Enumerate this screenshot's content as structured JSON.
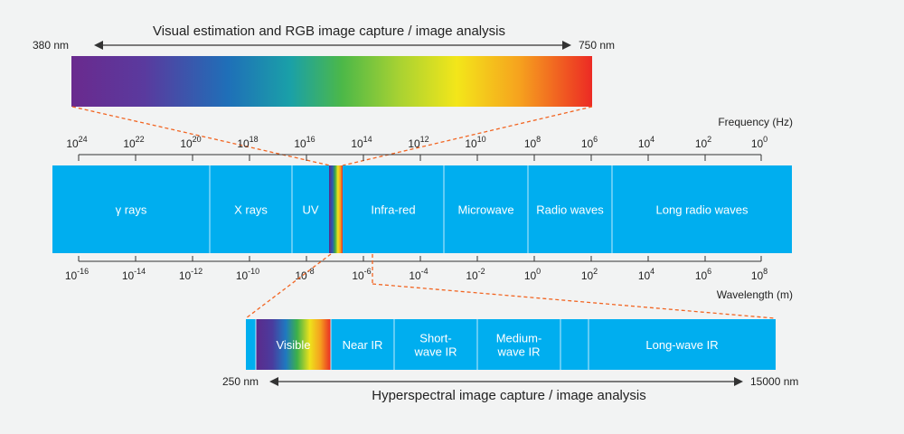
{
  "visible_strip": {
    "title": "Visual estimation and RGB image capture / image analysis",
    "start_label": "380 nm",
    "end_label": "750 nm"
  },
  "frequency_axis": {
    "label": "Frequency (Hz)",
    "ticks": [
      {
        "base": "10",
        "exp": "24"
      },
      {
        "base": "10",
        "exp": "22"
      },
      {
        "base": "10",
        "exp": "20"
      },
      {
        "base": "10",
        "exp": "18"
      },
      {
        "base": "10",
        "exp": "16"
      },
      {
        "base": "10",
        "exp": "14"
      },
      {
        "base": "10",
        "exp": "12"
      },
      {
        "base": "10",
        "exp": "10"
      },
      {
        "base": "10",
        "exp": "8"
      },
      {
        "base": "10",
        "exp": "6"
      },
      {
        "base": "10",
        "exp": "4"
      },
      {
        "base": "10",
        "exp": "2"
      },
      {
        "base": "10",
        "exp": "0"
      }
    ]
  },
  "spectrum_bands": [
    {
      "id": "gamma",
      "label": "γ rays"
    },
    {
      "id": "xray",
      "label": "X rays"
    },
    {
      "id": "uv",
      "label": "UV"
    },
    {
      "id": "visible-slice",
      "label": ""
    },
    {
      "id": "infrared",
      "label": "Infra-red"
    },
    {
      "id": "microwave",
      "label": "Microwave"
    },
    {
      "id": "radio",
      "label": "Radio waves"
    },
    {
      "id": "long-radio",
      "label": "Long radio waves"
    }
  ],
  "wavelength_axis": {
    "label": "Wavelength (m)",
    "ticks": [
      {
        "base": "10",
        "exp": "-16"
      },
      {
        "base": "10",
        "exp": "-14"
      },
      {
        "base": "10",
        "exp": "-12"
      },
      {
        "base": "10",
        "exp": "-10"
      },
      {
        "base": "10",
        "exp": "-8"
      },
      {
        "base": "10",
        "exp": "-6"
      },
      {
        "base": "10",
        "exp": "-4"
      },
      {
        "base": "10",
        "exp": "-2"
      },
      {
        "base": "10",
        "exp": "0"
      },
      {
        "base": "10",
        "exp": "2"
      },
      {
        "base": "10",
        "exp": "4"
      },
      {
        "base": "10",
        "exp": "6"
      },
      {
        "base": "10",
        "exp": "8"
      }
    ]
  },
  "hyperspectral_bands": [
    {
      "id": "visible",
      "lines": [
        "Visible"
      ]
    },
    {
      "id": "near-ir",
      "lines": [
        "Near IR"
      ]
    },
    {
      "id": "shortwave-ir",
      "lines": [
        "Short-",
        "wave IR"
      ]
    },
    {
      "id": "mediumwave-ir",
      "lines": [
        "Medium-",
        "wave IR"
      ]
    },
    {
      "id": "gap",
      "lines": []
    },
    {
      "id": "longwave-ir",
      "lines": [
        "Long-wave IR"
      ]
    }
  ],
  "hyperspectral_strip": {
    "title": "Hyperspectral image capture / image analysis",
    "start_label": "250 nm",
    "end_label": "15000 nm"
  },
  "colors": {
    "band_blue": "#00aeef",
    "divider": "#bfe9fb",
    "dashed_connector": "#f26522",
    "axis": "#333333",
    "background": "#f2f3f3"
  }
}
